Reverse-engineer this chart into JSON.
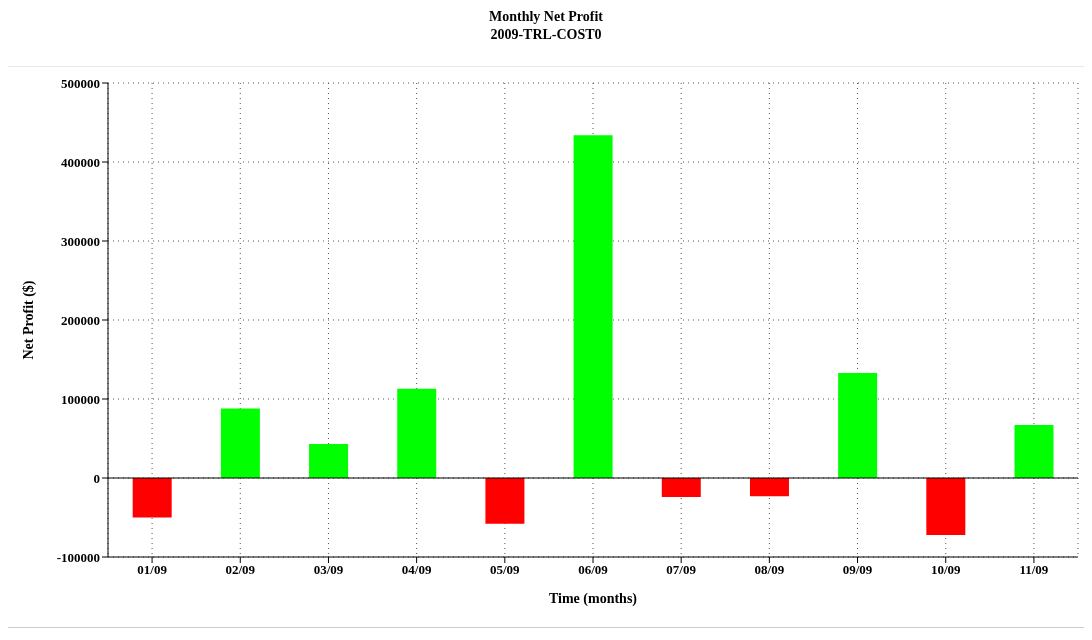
{
  "chart_data": {
    "type": "bar",
    "title": "Monthly Net Profit",
    "subtitle": "2009-TRL-COST0",
    "xlabel": "Time (months)",
    "ylabel": "Net Profit ($)",
    "categories": [
      "01/09",
      "02/09",
      "03/09",
      "04/09",
      "05/09",
      "06/09",
      "07/09",
      "08/09",
      "09/09",
      "10/09",
      "11/09"
    ],
    "values": [
      -50000,
      88000,
      43000,
      113000,
      -58000,
      434000,
      -24000,
      -23000,
      133000,
      -72000,
      67000
    ],
    "colors": [
      "#ff0000",
      "#00ff00",
      "#00ff00",
      "#00ff00",
      "#ff0000",
      "#00ff00",
      "#ff0000",
      "#ff0000",
      "#00ff00",
      "#ff0000",
      "#00ff00"
    ],
    "ylim": [
      -100000,
      500000
    ],
    "yticks": [
      -100000,
      0,
      100000,
      200000,
      300000,
      400000,
      500000
    ],
    "grid": true,
    "ref_lines": [
      {
        "axis": "y",
        "value": 0,
        "color": "#000000"
      }
    ]
  }
}
